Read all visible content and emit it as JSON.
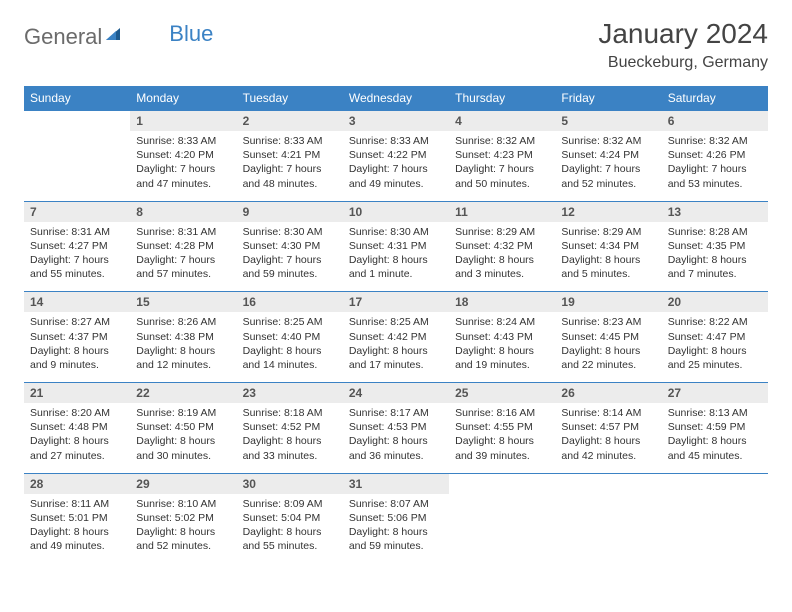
{
  "logo": {
    "part1": "General",
    "part2": "Blue"
  },
  "title": "January 2024",
  "location": "Bueckeburg, Germany",
  "colors": {
    "header_bg": "#3b82c4",
    "header_text": "#ffffff",
    "daynum_bg": "#ececec",
    "daynum_text": "#555555",
    "cell_text": "#333333",
    "border": "#3b82c4",
    "logo_gray": "#6b6b6b",
    "logo_blue": "#3b82c4"
  },
  "typography": {
    "title_fontsize": 28,
    "location_fontsize": 16,
    "header_fontsize": 12,
    "daynum_fontsize": 12,
    "detail_fontsize": 10.5
  },
  "weekdays": [
    "Sunday",
    "Monday",
    "Tuesday",
    "Wednesday",
    "Thursday",
    "Friday",
    "Saturday"
  ],
  "weeks": [
    {
      "nums": [
        "",
        "1",
        "2",
        "3",
        "4",
        "5",
        "6"
      ],
      "details": [
        "",
        "Sunrise: 8:33 AM\nSunset: 4:20 PM\nDaylight: 7 hours and 47 minutes.",
        "Sunrise: 8:33 AM\nSunset: 4:21 PM\nDaylight: 7 hours and 48 minutes.",
        "Sunrise: 8:33 AM\nSunset: 4:22 PM\nDaylight: 7 hours and 49 minutes.",
        "Sunrise: 8:32 AM\nSunset: 4:23 PM\nDaylight: 7 hours and 50 minutes.",
        "Sunrise: 8:32 AM\nSunset: 4:24 PM\nDaylight: 7 hours and 52 minutes.",
        "Sunrise: 8:32 AM\nSunset: 4:26 PM\nDaylight: 7 hours and 53 minutes."
      ]
    },
    {
      "nums": [
        "7",
        "8",
        "9",
        "10",
        "11",
        "12",
        "13"
      ],
      "details": [
        "Sunrise: 8:31 AM\nSunset: 4:27 PM\nDaylight: 7 hours and 55 minutes.",
        "Sunrise: 8:31 AM\nSunset: 4:28 PM\nDaylight: 7 hours and 57 minutes.",
        "Sunrise: 8:30 AM\nSunset: 4:30 PM\nDaylight: 7 hours and 59 minutes.",
        "Sunrise: 8:30 AM\nSunset: 4:31 PM\nDaylight: 8 hours and 1 minute.",
        "Sunrise: 8:29 AM\nSunset: 4:32 PM\nDaylight: 8 hours and 3 minutes.",
        "Sunrise: 8:29 AM\nSunset: 4:34 PM\nDaylight: 8 hours and 5 minutes.",
        "Sunrise: 8:28 AM\nSunset: 4:35 PM\nDaylight: 8 hours and 7 minutes."
      ]
    },
    {
      "nums": [
        "14",
        "15",
        "16",
        "17",
        "18",
        "19",
        "20"
      ],
      "details": [
        "Sunrise: 8:27 AM\nSunset: 4:37 PM\nDaylight: 8 hours and 9 minutes.",
        "Sunrise: 8:26 AM\nSunset: 4:38 PM\nDaylight: 8 hours and 12 minutes.",
        "Sunrise: 8:25 AM\nSunset: 4:40 PM\nDaylight: 8 hours and 14 minutes.",
        "Sunrise: 8:25 AM\nSunset: 4:42 PM\nDaylight: 8 hours and 17 minutes.",
        "Sunrise: 8:24 AM\nSunset: 4:43 PM\nDaylight: 8 hours and 19 minutes.",
        "Sunrise: 8:23 AM\nSunset: 4:45 PM\nDaylight: 8 hours and 22 minutes.",
        "Sunrise: 8:22 AM\nSunset: 4:47 PM\nDaylight: 8 hours and 25 minutes."
      ]
    },
    {
      "nums": [
        "21",
        "22",
        "23",
        "24",
        "25",
        "26",
        "27"
      ],
      "details": [
        "Sunrise: 8:20 AM\nSunset: 4:48 PM\nDaylight: 8 hours and 27 minutes.",
        "Sunrise: 8:19 AM\nSunset: 4:50 PM\nDaylight: 8 hours and 30 minutes.",
        "Sunrise: 8:18 AM\nSunset: 4:52 PM\nDaylight: 8 hours and 33 minutes.",
        "Sunrise: 8:17 AM\nSunset: 4:53 PM\nDaylight: 8 hours and 36 minutes.",
        "Sunrise: 8:16 AM\nSunset: 4:55 PM\nDaylight: 8 hours and 39 minutes.",
        "Sunrise: 8:14 AM\nSunset: 4:57 PM\nDaylight: 8 hours and 42 minutes.",
        "Sunrise: 8:13 AM\nSunset: 4:59 PM\nDaylight: 8 hours and 45 minutes."
      ]
    },
    {
      "nums": [
        "28",
        "29",
        "30",
        "31",
        "",
        "",
        ""
      ],
      "details": [
        "Sunrise: 8:11 AM\nSunset: 5:01 PM\nDaylight: 8 hours and 49 minutes.",
        "Sunrise: 8:10 AM\nSunset: 5:02 PM\nDaylight: 8 hours and 52 minutes.",
        "Sunrise: 8:09 AM\nSunset: 5:04 PM\nDaylight: 8 hours and 55 minutes.",
        "Sunrise: 8:07 AM\nSunset: 5:06 PM\nDaylight: 8 hours and 59 minutes.",
        "",
        "",
        ""
      ]
    }
  ]
}
